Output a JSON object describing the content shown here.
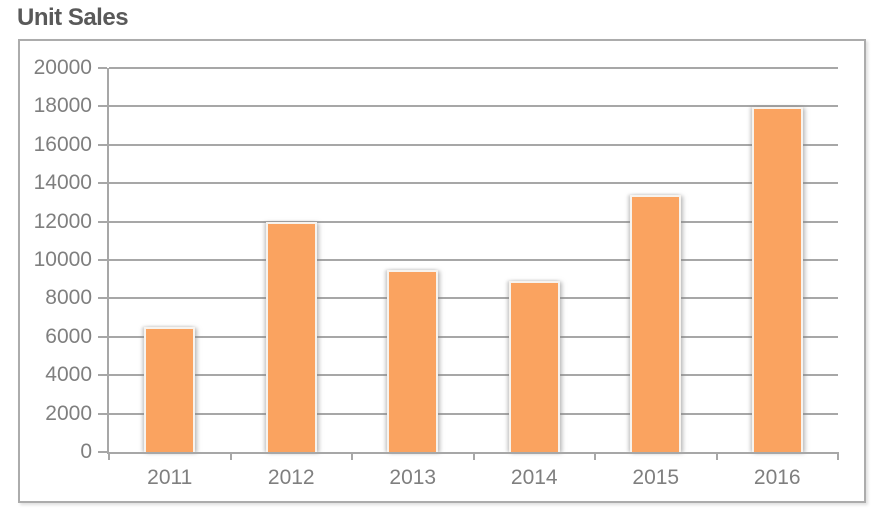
{
  "chart_data": {
    "type": "bar",
    "title": "Unit Sales",
    "categories": [
      "2011",
      "2012",
      "2013",
      "2014",
      "2015",
      "2016"
    ],
    "values": [
      6400,
      11850,
      9400,
      8800,
      13300,
      17850
    ],
    "ylim": [
      0,
      20000
    ],
    "ytick_step": 2000,
    "ytick_labels": [
      "0",
      "2000",
      "4000",
      "6000",
      "8000",
      "10000",
      "12000",
      "14000",
      "16000",
      "18000",
      "20000"
    ],
    "xlabel": "",
    "ylabel": "",
    "legend": "none",
    "grid": "horizontal-major-gridlines",
    "colors": {
      "bar_fill": "#FAA360",
      "bar_edge": "#F7F3EE",
      "gridline": "#A7A7A7",
      "axis_line": "#A7A7A7",
      "tick_label": "#7F7F7F",
      "title": "#595959",
      "frame_border": "#ACACAC",
      "background": "#FFFFFF"
    }
  }
}
